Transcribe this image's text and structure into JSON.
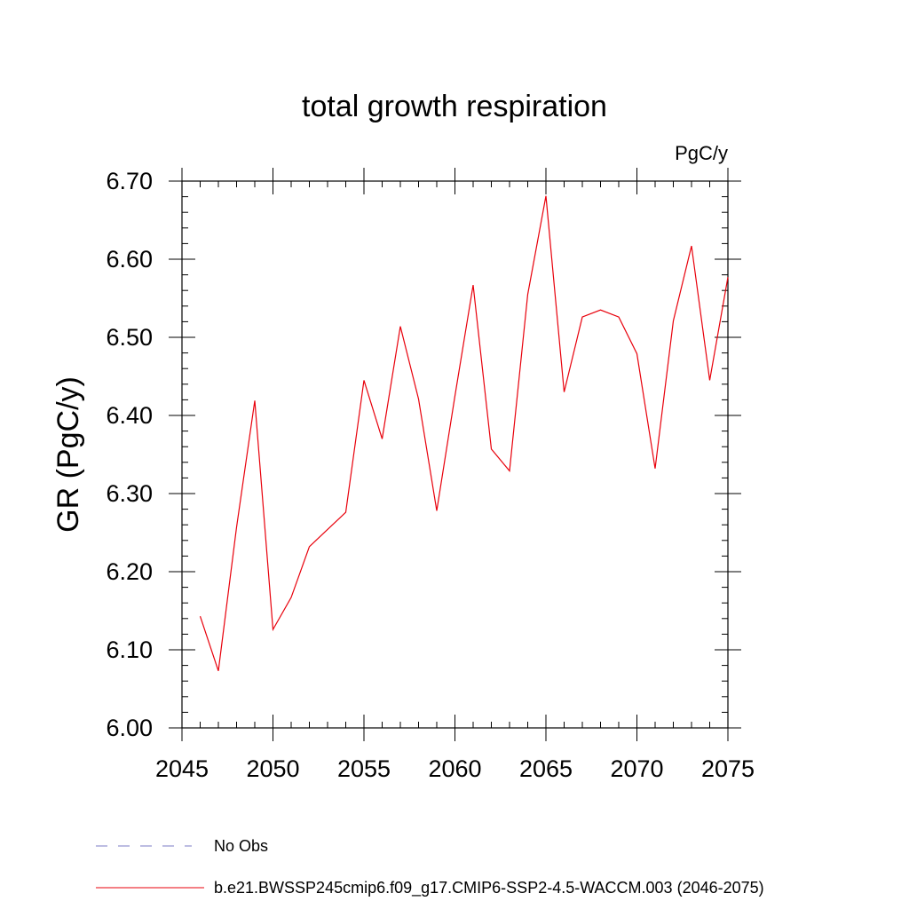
{
  "chart_data": {
    "type": "line",
    "title": "total growth respiration",
    "units_label": "PgC/y",
    "ylabel": "GR  (PgC/y)",
    "xlabel": "",
    "xlim": [
      2045,
      2075
    ],
    "ylim": [
      6.0,
      6.7
    ],
    "x_ticks": [
      "2045",
      "2050",
      "2055",
      "2060",
      "2065",
      "2070",
      "2075"
    ],
    "y_ticks": [
      "6.00",
      "6.10",
      "6.20",
      "6.30",
      "6.40",
      "6.50",
      "6.60",
      "6.70"
    ],
    "grid": false,
    "legend_position": "bottom",
    "series": [
      {
        "name": "No Obs",
        "color": "#7b7bc6",
        "style": "dashed",
        "x": [],
        "values": []
      },
      {
        "name": "b.e21.BWSSP245cmip6.f09_g17.CMIP6-SSP2-4.5-WACCM.003 (2046-2075)",
        "color": "#e8000b",
        "style": "solid",
        "x": [
          2046,
          2047,
          2048,
          2049,
          2050,
          2051,
          2052,
          2053,
          2054,
          2055,
          2056,
          2057,
          2058,
          2059,
          2060,
          2061,
          2062,
          2063,
          2064,
          2065,
          2066,
          2067,
          2068,
          2069,
          2070,
          2071,
          2072,
          2073,
          2074,
          2075
        ],
        "values": [
          6.143,
          6.073,
          6.257,
          6.419,
          6.126,
          6.167,
          6.232,
          6.254,
          6.276,
          6.445,
          6.37,
          6.514,
          6.421,
          6.278,
          6.425,
          6.567,
          6.357,
          6.329,
          6.555,
          6.681,
          6.43,
          6.526,
          6.535,
          6.526,
          6.479,
          6.332,
          6.521,
          6.617,
          6.445,
          6.577
        ]
      }
    ]
  }
}
